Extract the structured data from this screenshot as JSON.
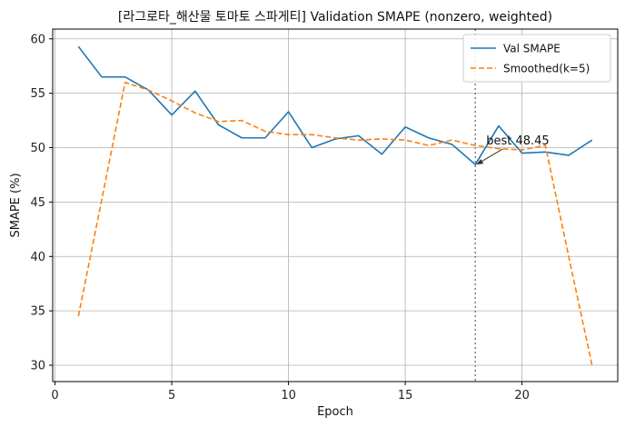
{
  "chart_data": {
    "type": "line",
    "title": "[라그로타_해산물 토마토 스파게티] Validation SMAPE (nonzero, weighted)",
    "xlabel": "Epoch",
    "ylabel": "SMAPE (%)",
    "xlim": [
      -0.1,
      24.1
    ],
    "ylim": [
      28.5,
      60.9
    ],
    "xticks": [
      0,
      5,
      10,
      15,
      20
    ],
    "yticks": [
      30,
      35,
      40,
      45,
      50,
      55,
      60
    ],
    "grid": true,
    "legend_position": "top-right",
    "x": [
      1,
      2,
      3,
      4,
      5,
      6,
      7,
      8,
      9,
      10,
      11,
      12,
      13,
      14,
      15,
      16,
      17,
      18,
      19,
      20,
      21,
      22,
      23
    ],
    "series": [
      {
        "name": "Val SMAPE",
        "color": "#1f77b4",
        "style": "solid",
        "values": [
          59.3,
          56.5,
          56.5,
          55.3,
          53.0,
          55.2,
          52.1,
          50.9,
          50.9,
          53.3,
          50.0,
          50.8,
          51.1,
          49.4,
          51.9,
          50.9,
          50.3,
          48.45,
          52.0,
          49.5,
          49.6,
          49.3,
          50.7
        ]
      },
      {
        "name": "Smoothed(k=5)",
        "color": "#ff7f0e",
        "style": "dashed",
        "values": [
          34.5,
          45.2,
          56.0,
          55.3,
          54.3,
          53.2,
          52.4,
          52.5,
          51.5,
          51.2,
          51.2,
          50.9,
          50.7,
          50.8,
          50.7,
          50.2,
          50.7,
          50.2,
          49.9,
          49.8,
          50.2,
          40.0,
          30.0
        ]
      }
    ],
    "vline": {
      "x": 18,
      "color": "#808080",
      "style": "dotted"
    },
    "annotation": {
      "text": "best 48.45",
      "x": 18,
      "y": 48.45
    }
  }
}
